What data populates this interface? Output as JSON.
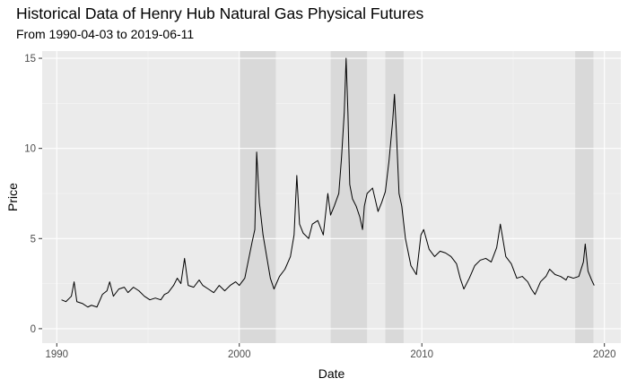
{
  "chart_data": {
    "type": "line",
    "title": "Historical Data of Henry Hub Natural Gas Physical Futures",
    "subtitle": "From 1990-04-03 to 2019-06-11",
    "xlabel": "Date",
    "ylabel": "Price",
    "xlim": [
      1989.2,
      2020.9
    ],
    "ylim": [
      -0.8,
      15.4
    ],
    "x_ticks": [
      1990,
      2000,
      2010,
      2020
    ],
    "x_tick_labels": [
      "1990",
      "2000",
      "2010",
      "2020"
    ],
    "y_ticks": [
      0,
      5,
      10,
      15
    ],
    "y_tick_labels": [
      "0",
      "5",
      "10",
      "15"
    ],
    "grid": true,
    "shaded_periods": [
      {
        "start": 2000.0,
        "end": 2002.0
      },
      {
        "start": 2005.0,
        "end": 2007.0
      },
      {
        "start": 2008.0,
        "end": 2009.0
      },
      {
        "start": 2018.4,
        "end": 2019.4
      }
    ],
    "series": [
      {
        "x": [
          1990.26,
          1990.5,
          1990.8,
          1990.95,
          1991.1,
          1991.4,
          1991.7,
          1991.9,
          1992.2,
          1992.5,
          1992.75,
          1992.9,
          1993.1,
          1993.4,
          1993.7,
          1993.9,
          1994.2,
          1994.5,
          1994.8,
          1995.1,
          1995.4,
          1995.7,
          1995.9,
          1996.1,
          1996.4,
          1996.6,
          1996.8,
          1997.0,
          1997.2,
          1997.5,
          1997.8,
          1998.0,
          1998.3,
          1998.6,
          1998.9,
          1999.2,
          1999.5,
          1999.8,
          2000.0,
          2000.3,
          2000.5,
          2000.7,
          2000.85,
          2000.95,
          2001.1,
          2001.3,
          2001.5,
          2001.7,
          2001.9,
          2002.2,
          2002.5,
          2002.8,
          2003.0,
          2003.15,
          2003.3,
          2003.5,
          2003.8,
          2004.0,
          2004.3,
          2004.6,
          2004.85,
          2005.0,
          2005.2,
          2005.45,
          2005.6,
          2005.75,
          2005.85,
          2005.95,
          2006.05,
          2006.2,
          2006.4,
          2006.6,
          2006.75,
          2006.85,
          2007.0,
          2007.3,
          2007.6,
          2007.8,
          2008.0,
          2008.2,
          2008.4,
          2008.5,
          2008.6,
          2008.75,
          2008.9,
          2009.1,
          2009.4,
          2009.7,
          2009.95,
          2010.1,
          2010.4,
          2010.7,
          2011.0,
          2011.3,
          2011.6,
          2011.9,
          2012.1,
          2012.3,
          2012.6,
          2012.9,
          2013.2,
          2013.5,
          2013.8,
          2014.1,
          2014.3,
          2014.6,
          2014.9,
          2015.2,
          2015.5,
          2015.8,
          2016.0,
          2016.2,
          2016.5,
          2016.8,
          2017.0,
          2017.3,
          2017.6,
          2017.9,
          2018.0,
          2018.3,
          2018.6,
          2018.85,
          2018.95,
          2019.1,
          2019.3,
          2019.44
        ],
        "y": [
          1.6,
          1.5,
          1.8,
          2.6,
          1.5,
          1.4,
          1.2,
          1.3,
          1.2,
          1.9,
          2.1,
          2.6,
          1.8,
          2.2,
          2.3,
          2.0,
          2.3,
          2.1,
          1.8,
          1.6,
          1.7,
          1.6,
          1.9,
          2.0,
          2.4,
          2.8,
          2.5,
          3.9,
          2.4,
          2.3,
          2.7,
          2.4,
          2.2,
          2.0,
          2.4,
          2.1,
          2.4,
          2.6,
          2.4,
          2.8,
          3.8,
          4.8,
          5.5,
          9.8,
          7.0,
          5.2,
          4.0,
          2.8,
          2.2,
          2.9,
          3.3,
          4.0,
          5.2,
          8.5,
          5.8,
          5.3,
          5.0,
          5.8,
          6.0,
          5.2,
          7.5,
          6.3,
          6.8,
          7.5,
          9.5,
          12.0,
          15.0,
          12.0,
          8.0,
          7.2,
          6.8,
          6.2,
          5.5,
          6.8,
          7.5,
          7.8,
          6.5,
          7.0,
          7.6,
          9.3,
          11.5,
          13.0,
          11.0,
          7.5,
          6.8,
          5.0,
          3.5,
          3.0,
          5.2,
          5.5,
          4.4,
          4.0,
          4.3,
          4.2,
          4.0,
          3.6,
          2.8,
          2.2,
          2.8,
          3.5,
          3.8,
          3.9,
          3.7,
          4.5,
          5.8,
          4.0,
          3.6,
          2.8,
          2.9,
          2.6,
          2.2,
          1.9,
          2.6,
          2.9,
          3.3,
          3.0,
          2.9,
          2.7,
          2.9,
          2.8,
          2.9,
          3.7,
          4.7,
          3.2,
          2.7,
          2.4
        ]
      }
    ]
  }
}
